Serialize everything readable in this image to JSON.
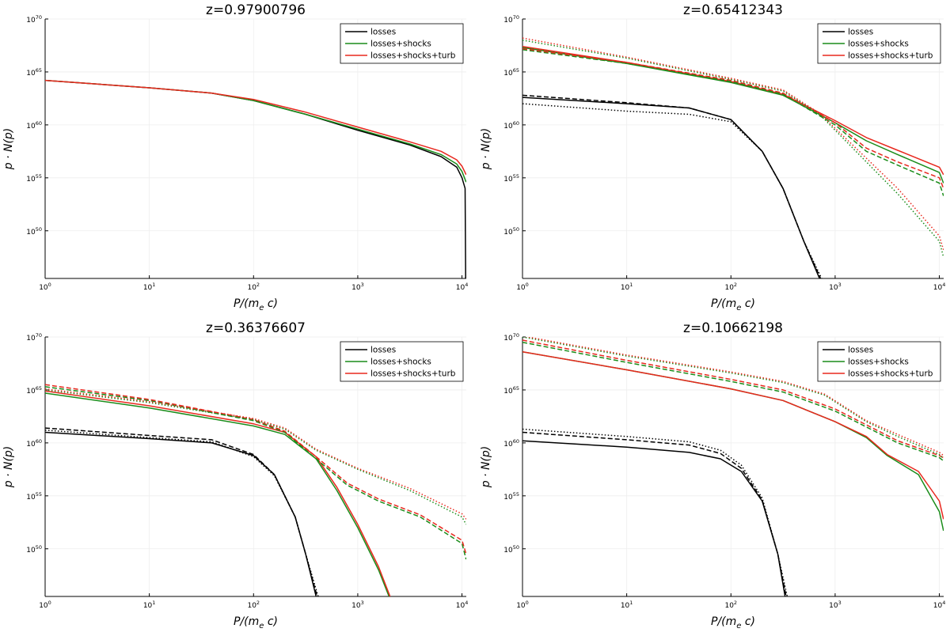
{
  "figure": {
    "rows": 2,
    "cols": 2
  },
  "styles": {
    "series_colors": {
      "losses": "#000000",
      "losses+shocks": "#1a8c1a",
      "losses+shocks+turb": "#e8281e"
    },
    "dash_meanings": [
      "solid",
      "dashed",
      "dotted"
    ]
  },
  "chart_data": [
    {
      "type": "line",
      "title": "z=0.97900796",
      "xlabel": "P/(m_e c)",
      "ylabel": "p · N(p)",
      "xscale": "log",
      "yscale": "log",
      "xlim_exp": [
        0,
        4.0414
      ],
      "ylim_exp": [
        45.5,
        70
      ],
      "xticks": [
        {
          "base": "10",
          "exp": "0"
        },
        {
          "base": "10",
          "exp": "1"
        },
        {
          "base": "10",
          "exp": "2"
        },
        {
          "base": "10",
          "exp": "3"
        },
        {
          "base": "10",
          "exp": "4"
        }
      ],
      "yticks": [
        {
          "base": "10",
          "exp": "50"
        },
        {
          "base": "10",
          "exp": "55"
        },
        {
          "base": "10",
          "exp": "60"
        },
        {
          "base": "10",
          "exp": "65"
        },
        {
          "base": "10",
          "exp": "70"
        }
      ],
      "legend": {
        "location": "top-right",
        "entries": [
          "losses",
          "losses+shocks",
          "losses+shocks+turb"
        ]
      },
      "series": [
        {
          "name": "losses",
          "dash": "solid",
          "x_exp": [
            0,
            1,
            1.6,
            2,
            2.5,
            3,
            3.5,
            3.8,
            3.95,
            4.0,
            4.03,
            4.035
          ],
          "y_exp": [
            64.2,
            63.5,
            63.0,
            62.3,
            61.0,
            59.5,
            58.1,
            57.0,
            56.0,
            55.0,
            54.0,
            45.5
          ]
        },
        {
          "name": "losses+shocks",
          "dash": "solid",
          "x_exp": [
            0,
            1,
            1.6,
            2,
            2.5,
            3,
            3.5,
            3.8,
            3.95,
            4.0,
            4.04
          ],
          "y_exp": [
            64.2,
            63.5,
            63.0,
            62.3,
            61.0,
            59.6,
            58.2,
            57.2,
            56.3,
            55.6,
            54.6
          ]
        },
        {
          "name": "losses+shocks+turb",
          "dash": "solid",
          "x_exp": [
            0,
            1,
            1.6,
            2,
            2.5,
            3,
            3.5,
            3.8,
            3.95,
            4.0,
            4.04
          ],
          "y_exp": [
            64.2,
            63.5,
            63.0,
            62.4,
            61.2,
            59.8,
            58.4,
            57.5,
            56.7,
            56.1,
            55.3
          ]
        }
      ]
    },
    {
      "type": "line",
      "title": "z=0.65412343",
      "xlabel": "P/(m_e c)",
      "ylabel": "p · N(p)",
      "xscale": "log",
      "yscale": "log",
      "xlim_exp": [
        0,
        4.0414
      ],
      "ylim_exp": [
        45.5,
        70
      ],
      "xticks": [
        {
          "base": "10",
          "exp": "0"
        },
        {
          "base": "10",
          "exp": "1"
        },
        {
          "base": "10",
          "exp": "2"
        },
        {
          "base": "10",
          "exp": "3"
        },
        {
          "base": "10",
          "exp": "4"
        }
      ],
      "yticks": [
        {
          "base": "10",
          "exp": "50"
        },
        {
          "base": "10",
          "exp": "55"
        },
        {
          "base": "10",
          "exp": "60"
        },
        {
          "base": "10",
          "exp": "65"
        },
        {
          "base": "10",
          "exp": "70"
        }
      ],
      "legend": {
        "location": "top-right",
        "entries": [
          "losses",
          "losses+shocks",
          "losses+shocks+turb"
        ]
      },
      "series": [
        {
          "name": "losses",
          "dash": "solid",
          "x_exp": [
            0,
            1,
            1.6,
            2,
            2.3,
            2.5,
            2.7,
            2.85
          ],
          "y_exp": [
            62.6,
            62.0,
            61.6,
            60.5,
            57.5,
            54.0,
            49.0,
            45.5
          ]
        },
        {
          "name": "losses",
          "dash": "dashed",
          "x_exp": [
            0,
            1,
            1.6,
            2,
            2.3,
            2.5,
            2.7,
            2.86
          ],
          "y_exp": [
            62.8,
            62.1,
            61.6,
            60.5,
            57.5,
            54.0,
            49.0,
            45.5
          ]
        },
        {
          "name": "losses",
          "dash": "dotted",
          "x_exp": [
            0,
            1,
            1.6,
            2,
            2.3,
            2.5,
            2.7,
            2.87
          ],
          "y_exp": [
            62.0,
            61.3,
            61.0,
            60.3,
            57.5,
            54.0,
            49.0,
            45.5
          ]
        },
        {
          "name": "losses+shocks",
          "dash": "solid",
          "x_exp": [
            0,
            1,
            2,
            2.5,
            3,
            3.3,
            3.6,
            4.0,
            4.04
          ],
          "y_exp": [
            67.3,
            65.8,
            64.0,
            62.8,
            60.2,
            58.5,
            57.2,
            55.5,
            54.5
          ]
        },
        {
          "name": "losses+shocks+turb",
          "dash": "solid",
          "x_exp": [
            0,
            1,
            2,
            2.5,
            3,
            3.3,
            3.6,
            4.0,
            4.04
          ],
          "y_exp": [
            67.4,
            65.9,
            64.1,
            62.9,
            60.4,
            58.8,
            57.6,
            56.0,
            55.3
          ]
        },
        {
          "name": "losses+shocks",
          "dash": "dashed",
          "x_exp": [
            0,
            1,
            2,
            2.5,
            3,
            3.3,
            3.6,
            4.0,
            4.04
          ],
          "y_exp": [
            67.1,
            65.8,
            64.1,
            62.9,
            60.0,
            57.5,
            56.2,
            54.5,
            53.3
          ]
        },
        {
          "name": "losses+shocks+turb",
          "dash": "dashed",
          "x_exp": [
            0,
            1,
            2,
            2.5,
            3,
            3.3,
            3.6,
            4.0,
            4.04
          ],
          "y_exp": [
            67.2,
            65.9,
            64.2,
            63.0,
            60.2,
            57.8,
            56.5,
            55.0,
            54.0
          ]
        },
        {
          "name": "losses+shocks",
          "dash": "dotted",
          "x_exp": [
            0,
            1,
            2,
            2.5,
            2.85,
            3.2,
            3.6,
            4.0,
            4.04
          ],
          "y_exp": [
            68.0,
            66.3,
            64.3,
            63.2,
            61.0,
            57.5,
            53.5,
            49.0,
            47.5
          ]
        },
        {
          "name": "losses+shocks+turb",
          "dash": "dotted",
          "x_exp": [
            0,
            1,
            2,
            2.5,
            2.85,
            3.2,
            3.6,
            4.0,
            4.04
          ],
          "y_exp": [
            68.2,
            66.4,
            64.4,
            63.3,
            61.1,
            57.8,
            54.0,
            49.5,
            48.2
          ]
        }
      ]
    },
    {
      "type": "line",
      "title": "z=0.36376607",
      "xlabel": "P/(m_e c)",
      "ylabel": "p · N(p)",
      "xscale": "log",
      "yscale": "log",
      "xlim_exp": [
        0,
        4.0414
      ],
      "ylim_exp": [
        45.5,
        70
      ],
      "xticks": [
        {
          "base": "10",
          "exp": "0"
        },
        {
          "base": "10",
          "exp": "1"
        },
        {
          "base": "10",
          "exp": "2"
        },
        {
          "base": "10",
          "exp": "3"
        },
        {
          "base": "10",
          "exp": "4"
        }
      ],
      "yticks": [
        {
          "base": "10",
          "exp": "50"
        },
        {
          "base": "10",
          "exp": "55"
        },
        {
          "base": "10",
          "exp": "60"
        },
        {
          "base": "10",
          "exp": "65"
        },
        {
          "base": "10",
          "exp": "70"
        }
      ],
      "legend": {
        "location": "top-right",
        "entries": [
          "losses",
          "losses+shocks",
          "losses+shocks+turb"
        ]
      },
      "series": [
        {
          "name": "losses",
          "dash": "solid",
          "x_exp": [
            0,
            1,
            1.6,
            2,
            2.2,
            2.4,
            2.5,
            2.6
          ],
          "y_exp": [
            61.0,
            60.4,
            60.0,
            58.8,
            57.0,
            53.0,
            49.5,
            45.5
          ]
        },
        {
          "name": "losses",
          "dash": "dashed",
          "x_exp": [
            0,
            1,
            1.6,
            2,
            2.2,
            2.4,
            2.5,
            2.61
          ],
          "y_exp": [
            61.4,
            60.7,
            60.3,
            58.9,
            57.0,
            53.0,
            49.5,
            45.5
          ]
        },
        {
          "name": "losses",
          "dash": "dotted",
          "x_exp": [
            0,
            1,
            1.6,
            2,
            2.2,
            2.4,
            2.5,
            2.62
          ],
          "y_exp": [
            61.2,
            60.5,
            60.1,
            58.7,
            56.9,
            53.0,
            49.5,
            45.5
          ]
        },
        {
          "name": "losses+shocks",
          "dash": "solid",
          "x_exp": [
            0,
            1,
            2,
            2.3,
            2.6,
            2.8,
            3.0,
            3.2,
            3.3
          ],
          "y_exp": [
            64.7,
            63.3,
            61.6,
            60.8,
            58.5,
            55.5,
            52.0,
            48.0,
            45.5
          ]
        },
        {
          "name": "losses+shocks+turb",
          "dash": "solid",
          "x_exp": [
            0,
            1,
            2,
            2.3,
            2.6,
            2.8,
            3.0,
            3.2,
            3.31
          ],
          "y_exp": [
            64.9,
            63.5,
            61.8,
            61.0,
            58.7,
            55.8,
            52.3,
            48.3,
            45.5
          ]
        },
        {
          "name": "losses+shocks",
          "dash": "dashed",
          "x_exp": [
            0,
            1,
            2,
            2.3,
            2.6,
            2.9,
            3.2,
            3.6,
            4.0,
            4.04
          ],
          "y_exp": [
            65.3,
            64.0,
            62.1,
            61.0,
            58.5,
            56.0,
            54.5,
            53.0,
            50.5,
            49.0
          ]
        },
        {
          "name": "losses+shocks+turb",
          "dash": "dashed",
          "x_exp": [
            0,
            1,
            2,
            2.3,
            2.6,
            2.9,
            3.2,
            3.6,
            4.0,
            4.04
          ],
          "y_exp": [
            65.5,
            64.1,
            62.2,
            61.1,
            58.7,
            56.2,
            54.7,
            53.2,
            50.8,
            49.5
          ]
        },
        {
          "name": "losses+shocks",
          "dash": "dotted",
          "x_exp": [
            0,
            1,
            2,
            2.3,
            2.6,
            3.0,
            3.5,
            4.0,
            4.04
          ],
          "y_exp": [
            65.0,
            63.8,
            62.2,
            61.3,
            59.3,
            57.5,
            55.5,
            53.0,
            52.3
          ]
        },
        {
          "name": "losses+shocks+turb",
          "dash": "dotted",
          "x_exp": [
            0,
            1,
            2,
            2.3,
            2.6,
            3.0,
            3.5,
            4.0,
            4.04
          ],
          "y_exp": [
            65.1,
            63.9,
            62.3,
            61.4,
            59.4,
            57.6,
            55.7,
            53.3,
            52.8
          ]
        }
      ]
    },
    {
      "type": "line",
      "title": "z=0.10662198",
      "xlabel": "P/(m_e c)",
      "ylabel": "p · N(p)",
      "xscale": "log",
      "yscale": "log",
      "xlim_exp": [
        0,
        4.0414
      ],
      "ylim_exp": [
        45.5,
        70
      ],
      "xticks": [
        {
          "base": "10",
          "exp": "0"
        },
        {
          "base": "10",
          "exp": "1"
        },
        {
          "base": "10",
          "exp": "2"
        },
        {
          "base": "10",
          "exp": "3"
        },
        {
          "base": "10",
          "exp": "4"
        }
      ],
      "yticks": [
        {
          "base": "10",
          "exp": "50"
        },
        {
          "base": "10",
          "exp": "55"
        },
        {
          "base": "10",
          "exp": "60"
        },
        {
          "base": "10",
          "exp": "65"
        },
        {
          "base": "10",
          "exp": "70"
        }
      ],
      "legend": {
        "location": "top-right",
        "entries": [
          "losses",
          "losses+shocks",
          "losses+shocks+turb"
        ]
      },
      "series": [
        {
          "name": "losses",
          "dash": "solid",
          "x_exp": [
            0,
            1,
            1.6,
            1.9,
            2.1,
            2.3,
            2.45,
            2.52
          ],
          "y_exp": [
            60.2,
            59.6,
            59.1,
            58.5,
            57.3,
            54.5,
            49.5,
            45.5
          ]
        },
        {
          "name": "losses",
          "dash": "dashed",
          "x_exp": [
            0,
            1,
            1.6,
            1.9,
            2.1,
            2.3,
            2.45,
            2.53
          ],
          "y_exp": [
            61.0,
            60.3,
            59.8,
            59.0,
            57.6,
            54.6,
            49.5,
            45.5
          ]
        },
        {
          "name": "losses",
          "dash": "dotted",
          "x_exp": [
            0,
            1,
            1.6,
            1.9,
            2.1,
            2.3,
            2.45,
            2.54
          ],
          "y_exp": [
            61.3,
            60.6,
            60.1,
            59.3,
            57.9,
            54.8,
            49.5,
            45.5
          ]
        },
        {
          "name": "losses+shocks",
          "dash": "solid",
          "x_exp": [
            0,
            1,
            2,
            2.5,
            3.0,
            3.3,
            3.5,
            3.8,
            4.0,
            4.04
          ],
          "y_exp": [
            68.6,
            66.9,
            65.1,
            64.0,
            62.0,
            60.5,
            58.8,
            57.0,
            53.5,
            51.7
          ]
        },
        {
          "name": "losses+shocks+turb",
          "dash": "solid",
          "x_exp": [
            0,
            1,
            2,
            2.5,
            3.0,
            3.3,
            3.5,
            3.8,
            4.0,
            4.04
          ],
          "y_exp": [
            68.6,
            66.9,
            65.1,
            64.0,
            62.0,
            60.6,
            58.9,
            57.3,
            54.5,
            52.8
          ]
        },
        {
          "name": "losses+shocks",
          "dash": "dashed",
          "x_exp": [
            0,
            1,
            2,
            2.5,
            3.0,
            3.3,
            3.6,
            4.0,
            4.04
          ],
          "y_exp": [
            69.5,
            67.6,
            65.8,
            64.8,
            63.0,
            61.5,
            60.0,
            58.6,
            58.3
          ]
        },
        {
          "name": "losses+shocks+turb",
          "dash": "dashed",
          "x_exp": [
            0,
            1,
            2,
            2.5,
            3.0,
            3.3,
            3.6,
            4.0,
            4.04
          ],
          "y_exp": [
            69.7,
            67.8,
            66.0,
            65.0,
            63.2,
            61.7,
            60.2,
            58.8,
            58.6
          ]
        },
        {
          "name": "losses+shocks",
          "dash": "dotted",
          "x_exp": [
            0,
            1,
            2,
            2.5,
            2.9,
            3.3,
            3.6,
            4.0,
            4.04
          ],
          "y_exp": [
            70.0,
            68.2,
            66.6,
            65.7,
            64.5,
            62.0,
            60.6,
            58.9,
            58.5
          ]
        },
        {
          "name": "losses+shocks+turb",
          "dash": "dotted",
          "x_exp": [
            0,
            1,
            2,
            2.5,
            2.9,
            3.3,
            3.6,
            4.0,
            4.04
          ],
          "y_exp": [
            70.1,
            68.3,
            66.7,
            65.8,
            64.6,
            62.1,
            60.8,
            59.1,
            58.8
          ]
        }
      ]
    }
  ]
}
